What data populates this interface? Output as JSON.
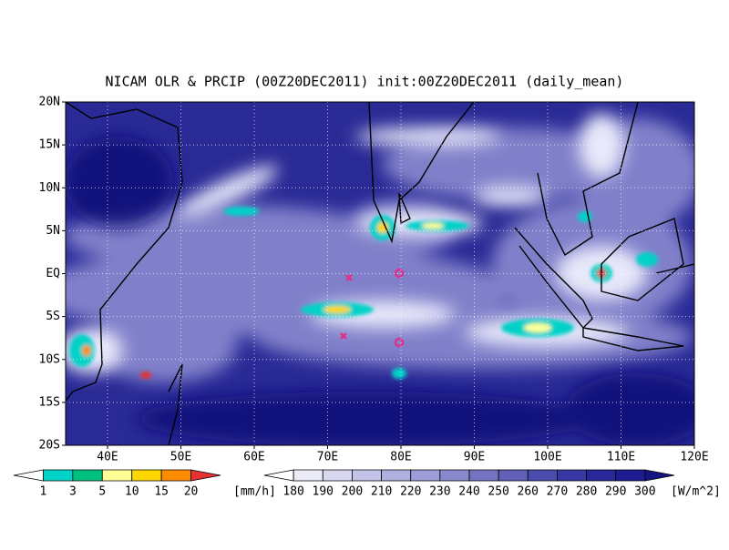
{
  "title": "NICAM OLR & PRCIP (00Z20DEC2011) init:00Z20DEC2011 (daily_mean)",
  "lat_labels": [
    "20N",
    "15N",
    "10N",
    "5N",
    "EQ",
    "5S",
    "10S",
    "15S",
    "20S"
  ],
  "lon_labels": [
    "40E",
    "50E",
    "60E",
    "70E",
    "80E",
    "90E",
    "100E",
    "110E",
    "120E"
  ],
  "precip_bar": {
    "labels": [
      "1",
      "3",
      "5",
      "10",
      "15",
      "20"
    ],
    "unit": "[mm/h]",
    "colors": [
      "#ffffff",
      "#00d2c8",
      "#00c080",
      "#ffff96",
      "#ffd700",
      "#ff8c00",
      "#e63232"
    ]
  },
  "olr_bar": {
    "labels": [
      "180",
      "190",
      "200",
      "210",
      "220",
      "230",
      "240",
      "250",
      "260",
      "270",
      "280",
      "290",
      "300"
    ],
    "unit": "[W/m^2]",
    "colors": [
      "#ffffff",
      "#ececf8",
      "#d8d8f0",
      "#c4c4e8",
      "#b0b0e0",
      "#9c9cd6",
      "#8888cc",
      "#7474c2",
      "#6060b8",
      "#4c4cae",
      "#3838a4",
      "#28289a",
      "#1c1c90",
      "#141482"
    ]
  }
}
